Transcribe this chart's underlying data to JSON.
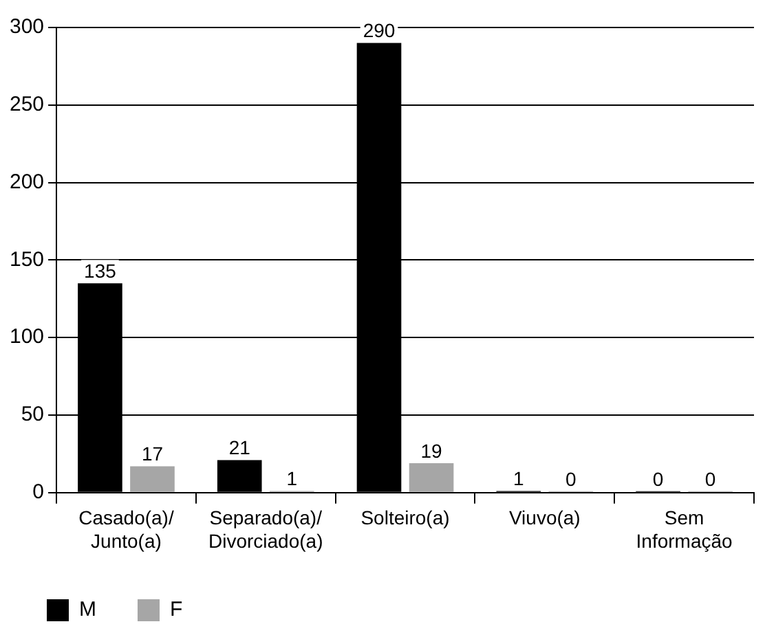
{
  "chart_data": {
    "type": "bar",
    "categories": [
      "Casado(a)/\nJunto(a)",
      "Separado(a)/\nDivorciado(a)",
      "Solteiro(a)",
      "Viuvo(a)",
      "Sem\nInformação"
    ],
    "series": [
      {
        "name": "M",
        "color": "#000000",
        "values": [
          135,
          21,
          290,
          1,
          0
        ]
      },
      {
        "name": "F",
        "color": "#a6a6a6",
        "values": [
          17,
          1,
          19,
          0,
          0
        ]
      }
    ],
    "ylim": [
      0,
      300
    ],
    "yticks": [
      0,
      50,
      100,
      150,
      200,
      250,
      300
    ],
    "grid": "y",
    "legend": "bottom left",
    "data_labels": true
  }
}
